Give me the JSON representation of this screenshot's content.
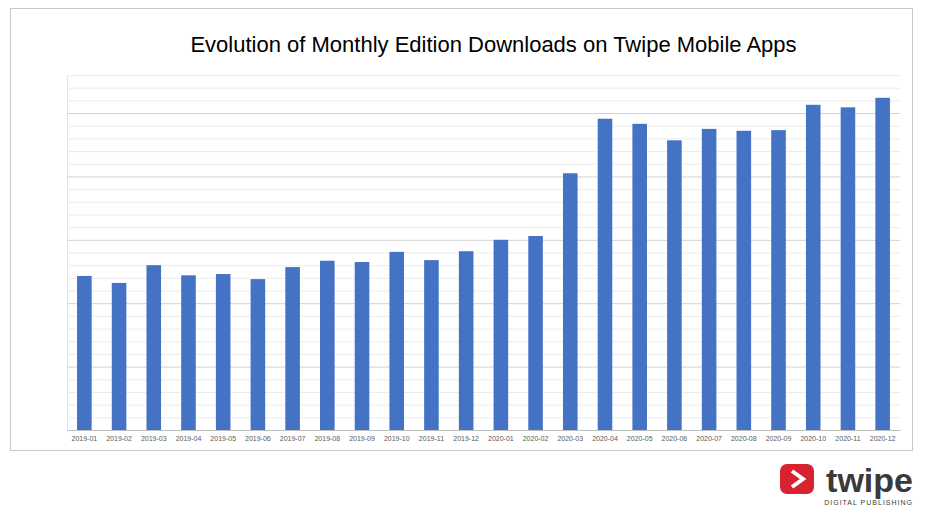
{
  "chart_data": {
    "type": "bar",
    "title": "Evolution of Monthly Edition Downloads on Twipe Mobile Apps",
    "categories": [
      "2019-01",
      "2019-02",
      "2019-03",
      "2019-04",
      "2019-05",
      "2019-06",
      "2019-07",
      "2019-08",
      "2019-09",
      "2019-10",
      "2019-11",
      "2019-12",
      "2020-01",
      "2020-02",
      "2020-03",
      "2020-04",
      "2020-05",
      "2020-06",
      "2020-07",
      "2020-08",
      "2020-09",
      "2020-10",
      "2020-11",
      "2020-12"
    ],
    "values": [
      243,
      232,
      260,
      244,
      246,
      238,
      257,
      267,
      265,
      281,
      268,
      282,
      300,
      306,
      405,
      491,
      483,
      457,
      475,
      472,
      473,
      513,
      509,
      524
    ],
    "color": "#4472c4",
    "ylim": [
      0,
      560
    ],
    "yticks": [
      0,
      20,
      40,
      60,
      80,
      100,
      120,
      140,
      160,
      180,
      200,
      220,
      240,
      260,
      280,
      300,
      320,
      340,
      360,
      380,
      400,
      420,
      440,
      460,
      480,
      500,
      520,
      540,
      560
    ],
    "grid": true,
    "tick_labels": "x"
  },
  "logo": {
    "name": "twipe",
    "tagline": "DIGITAL PUBLISHING"
  }
}
